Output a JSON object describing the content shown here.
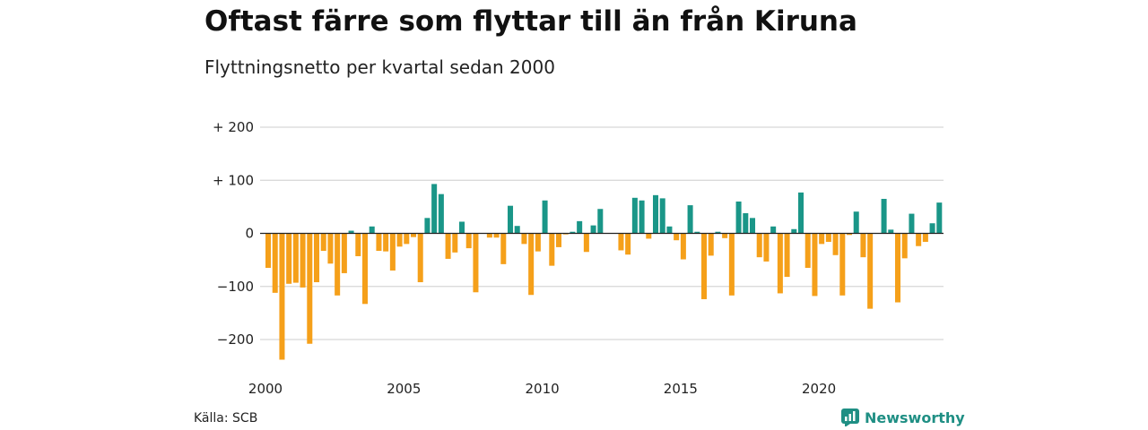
{
  "header": {
    "title": "Oftast färre som flyttar till än från Kiruna",
    "subtitle": "Flyttningsnetto per kvartal sedan 2000"
  },
  "footer": {
    "source": "Källa: SCB",
    "brand": "Newsworthy"
  },
  "colors": {
    "positive": "#1a9688",
    "negative": "#f5a01a",
    "grid": "#d6d6d6",
    "brand": "#1f8f84"
  },
  "icons": {
    "brand_logo": "newsworthy-logo-icon"
  },
  "chart_data": {
    "type": "bar",
    "title": "Oftast färre som flyttar till än från Kiruna",
    "subtitle": "Flyttningsnetto per kvartal sedan 2000",
    "xlabel": "",
    "ylabel": "",
    "ylim": [
      -240,
      200
    ],
    "yticks": [
      200,
      100,
      0,
      -100,
      -200
    ],
    "ytick_labels": [
      "+ 200",
      "+ 100",
      "0",
      "−100",
      "−200"
    ],
    "xticks": [
      "2000",
      "2005",
      "2010",
      "2015",
      "2020"
    ],
    "grid": true,
    "start_year": 2000,
    "frequency": "quarter",
    "colors": {
      "positive": "#1a9688",
      "negative": "#f5a01a"
    },
    "values": [
      -65,
      -112,
      -238,
      -95,
      -93,
      -102,
      -208,
      -92,
      -33,
      -57,
      -117,
      -75,
      5,
      -43,
      -133,
      13,
      -33,
      -34,
      -70,
      -25,
      -20,
      -7,
      -92,
      29,
      93,
      74,
      -48,
      -36,
      22,
      -28,
      -111,
      0,
      -8,
      -8,
      -58,
      52,
      14,
      -20,
      -116,
      -34,
      62,
      -61,
      -26,
      -2,
      3,
      23,
      -35,
      15,
      46,
      0,
      0,
      -32,
      -40,
      67,
      62,
      -10,
      72,
      66,
      13,
      -13,
      -49,
      53,
      3,
      -124,
      -42,
      3,
      -9,
      -117,
      60,
      38,
      29,
      -45,
      -53,
      13,
      -113,
      -82,
      8,
      77,
      -65,
      -118,
      -20,
      -16,
      -41,
      -117,
      -3,
      41,
      -45,
      -142,
      0,
      65,
      7,
      -130,
      -47,
      37,
      -24,
      -16,
      19,
      58
    ]
  }
}
